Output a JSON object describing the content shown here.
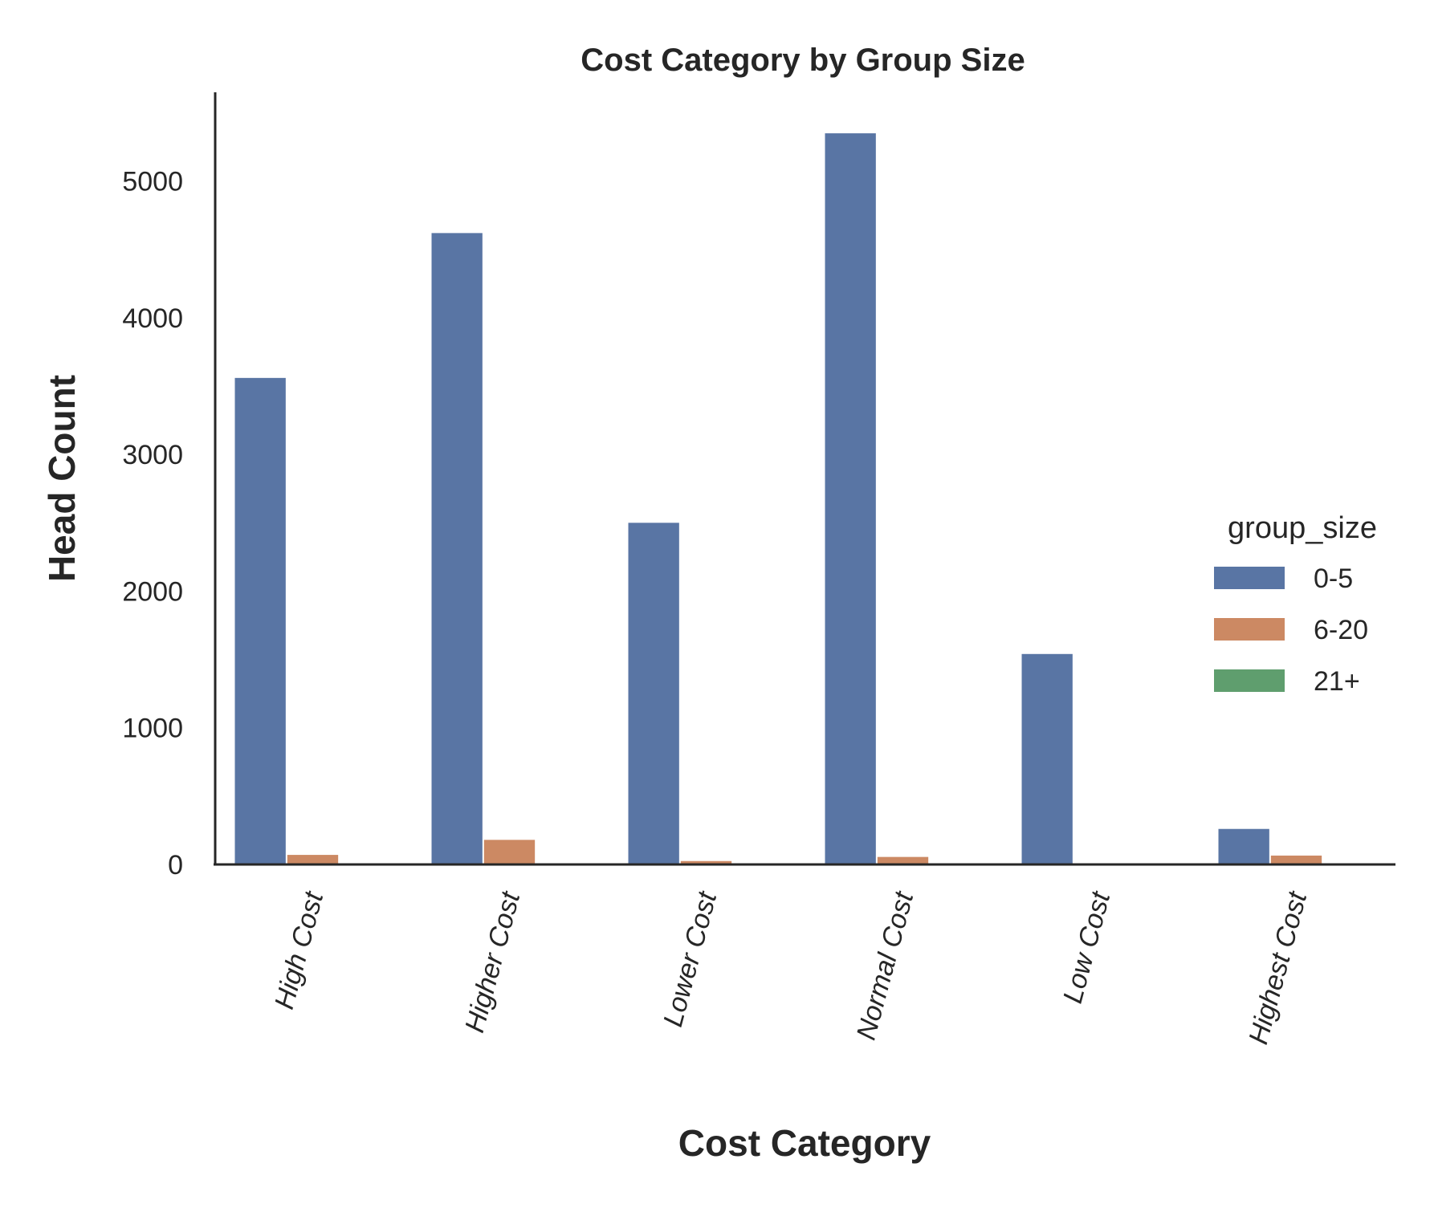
{
  "chart_data": {
    "type": "bar",
    "title": "Cost Category by Group Size",
    "xlabel": "Cost Category",
    "ylabel": "Head Count",
    "categories": [
      "High Cost",
      "Higher Cost",
      "Lower Cost",
      "Normal Cost",
      "Low Cost",
      "Highest Cost"
    ],
    "series": [
      {
        "name": "0-5",
        "color": "#5975a4",
        "values": [
          3560,
          4620,
          2500,
          5350,
          1540,
          260
        ]
      },
      {
        "name": "6-20",
        "color": "#cc8963",
        "values": [
          70,
          180,
          25,
          55,
          0,
          65
        ]
      },
      {
        "name": "21+",
        "color": "#5f9e6e",
        "values": [
          0,
          0,
          0,
          0,
          0,
          0
        ]
      }
    ],
    "ylim": [
      0,
      5650
    ],
    "yticks": [
      0,
      1000,
      2000,
      3000,
      4000,
      5000
    ],
    "grid": false,
    "legend": {
      "title": "group_size",
      "placement": "center-right outside"
    }
  }
}
